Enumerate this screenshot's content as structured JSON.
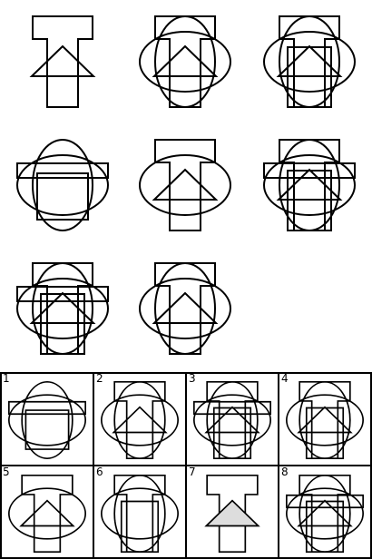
{
  "puzzle": {
    "options": [
      {
        "label": "1"
      },
      {
        "label": "2"
      },
      {
        "label": "3"
      },
      {
        "label": "4"
      },
      {
        "label": "5"
      },
      {
        "label": "6"
      },
      {
        "label": "7"
      },
      {
        "label": "8"
      }
    ]
  },
  "colors": {
    "stroke": "#000000",
    "fill_light": "#dddddd",
    "background": "#ffffff"
  }
}
